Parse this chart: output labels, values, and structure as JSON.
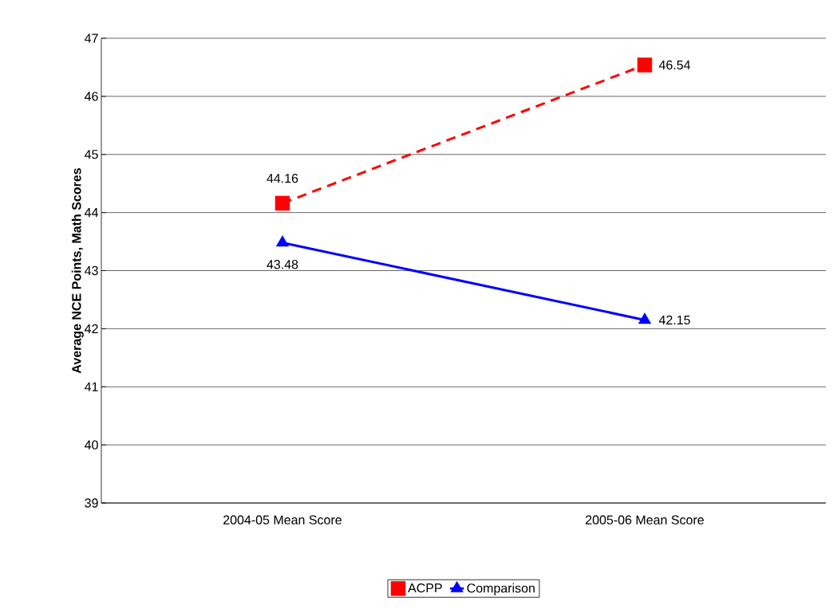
{
  "chart_data": {
    "type": "line",
    "ylabel": "Average NCE Points, Math Scores",
    "categories": [
      "2004-05 Mean Score",
      "2005-06 Mean Score"
    ],
    "series": [
      {
        "name": "ACPP",
        "color": "#ff0000",
        "values": [
          44.16,
          46.54
        ],
        "marker": "square",
        "line_style": "dashed"
      },
      {
        "name": "Comparison",
        "color": "#0000ff",
        "values": [
          43.48,
          42.15
        ],
        "marker": "triangle",
        "line_style": "solid"
      }
    ],
    "ylim": [
      39,
      47
    ],
    "yticks": [
      39,
      40,
      41,
      42,
      43,
      44,
      45,
      46,
      47
    ],
    "grid": "y",
    "legend": "bottom",
    "data_labels": true
  }
}
